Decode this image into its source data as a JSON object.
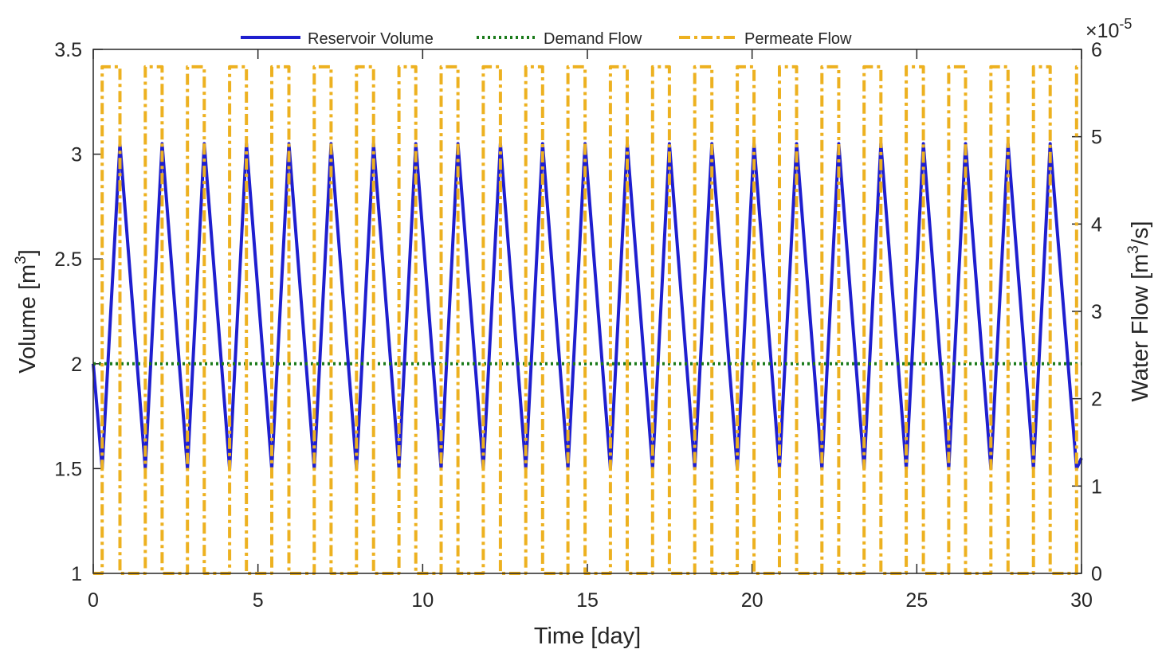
{
  "chart_data": {
    "type": "line",
    "xlabel": "Time [day]",
    "ylabel_left": "Volume [m",
    "ylabel_left_sup": "3",
    "ylabel_left_end": "]",
    "ylabel_right": "Water Flow [m",
    "ylabel_right_sup": "3",
    "ylabel_right_end": "/s]",
    "right_exponent_base": "×10",
    "right_exponent_power": "-5",
    "xlim": [
      0,
      30
    ],
    "ylim_left": [
      1,
      3.5
    ],
    "ylim_right": [
      0,
      6
    ],
    "xticks": [
      "0",
      "5",
      "10",
      "15",
      "20",
      "25",
      "30"
    ],
    "yticks_left": [
      "1",
      "1.5",
      "2",
      "2.5",
      "3",
      "3.5"
    ],
    "yticks_right": [
      "0",
      "1",
      "2",
      "3",
      "4",
      "5",
      "6"
    ],
    "legend": {
      "placement": "top",
      "entries": [
        "Reservoir Volume",
        "Demand Flow",
        "Permeate Flow"
      ]
    },
    "colors": {
      "reservoir": "#1f1fcf",
      "demand": "#1a7a1a",
      "permeate": "#edb120"
    },
    "series": [
      {
        "name": "Reservoir Volume",
        "axis": "left",
        "x": [
          0,
          0.27,
          0.81,
          1.58,
          2.09,
          2.86,
          3.37,
          4.14,
          4.65,
          5.42,
          5.94,
          6.71,
          7.22,
          7.99,
          8.51,
          9.28,
          9.79,
          10.56,
          11.07,
          11.84,
          12.36,
          13.13,
          13.64,
          14.41,
          14.93,
          15.7,
          16.21,
          16.98,
          17.49,
          18.26,
          18.78,
          19.55,
          20.06,
          20.83,
          21.35,
          22.12,
          22.63,
          23.4,
          23.91,
          24.68,
          25.2,
          25.97,
          26.48,
          27.25,
          27.77,
          28.54,
          29.05,
          29.85,
          30
        ],
        "y": [
          2.0,
          1.5,
          3.05,
          1.5,
          3.05,
          1.5,
          3.05,
          1.5,
          3.05,
          1.5,
          3.05,
          1.5,
          3.05,
          1.5,
          3.05,
          1.5,
          3.05,
          1.5,
          3.05,
          1.5,
          3.05,
          1.5,
          3.05,
          1.5,
          3.05,
          1.5,
          3.05,
          1.5,
          3.05,
          1.5,
          3.05,
          1.5,
          3.05,
          1.5,
          3.05,
          1.5,
          3.05,
          1.5,
          3.05,
          1.5,
          3.05,
          1.5,
          3.05,
          1.5,
          3.05,
          1.5,
          3.05,
          1.5,
          1.55
        ]
      },
      {
        "name": "Demand Flow",
        "axis": "left",
        "x": [
          0,
          30
        ],
        "y": [
          2.0,
          2.0
        ]
      },
      {
        "name": "Permeate Flow",
        "axis": "right",
        "x": [
          0,
          0.27,
          0.27,
          0.81,
          0.81,
          1.58,
          1.58,
          2.09,
          2.09,
          2.86,
          2.86,
          3.37,
          3.37,
          4.14,
          4.14,
          4.65,
          4.65,
          5.42,
          5.42,
          5.94,
          5.94,
          6.71,
          6.71,
          7.22,
          7.22,
          7.99,
          7.99,
          8.51,
          8.51,
          9.28,
          9.28,
          9.79,
          9.79,
          10.56,
          10.56,
          11.07,
          11.07,
          11.84,
          11.84,
          12.36,
          12.36,
          13.13,
          13.13,
          13.64,
          13.64,
          14.41,
          14.41,
          14.93,
          14.93,
          15.7,
          15.7,
          16.21,
          16.21,
          16.98,
          16.98,
          17.49,
          17.49,
          18.26,
          18.26,
          18.78,
          18.78,
          19.55,
          19.55,
          20.06,
          20.06,
          20.83,
          20.83,
          21.35,
          21.35,
          22.12,
          22.12,
          22.63,
          22.63,
          23.4,
          23.4,
          23.91,
          23.91,
          24.68,
          24.68,
          25.2,
          25.2,
          25.97,
          25.97,
          26.48,
          26.48,
          27.25,
          27.25,
          27.77,
          27.77,
          28.54,
          28.54,
          29.05,
          29.05,
          29.85,
          29.85,
          30
        ],
        "y": [
          0,
          0,
          5.8,
          5.8,
          0,
          0,
          5.8,
          5.8,
          0,
          0,
          5.8,
          5.8,
          0,
          0,
          5.8,
          5.8,
          0,
          0,
          5.8,
          5.8,
          0,
          0,
          5.8,
          5.8,
          0,
          0,
          5.8,
          5.8,
          0,
          0,
          5.8,
          5.8,
          0,
          0,
          5.8,
          5.8,
          0,
          0,
          5.8,
          5.8,
          0,
          0,
          5.8,
          5.8,
          0,
          0,
          5.8,
          5.8,
          0,
          0,
          5.8,
          5.8,
          0,
          0,
          5.8,
          5.8,
          0,
          0,
          5.8,
          5.8,
          0,
          0,
          5.8,
          5.8,
          0,
          0,
          5.8,
          5.8,
          0,
          0,
          5.8,
          5.8,
          0,
          0,
          5.8,
          5.8,
          0,
          0,
          5.8,
          5.8,
          0,
          0,
          5.8,
          5.8,
          0,
          0,
          5.8,
          5.8,
          0,
          0,
          5.8,
          5.8,
          0,
          0,
          5.8,
          5.8
        ]
      }
    ]
  }
}
